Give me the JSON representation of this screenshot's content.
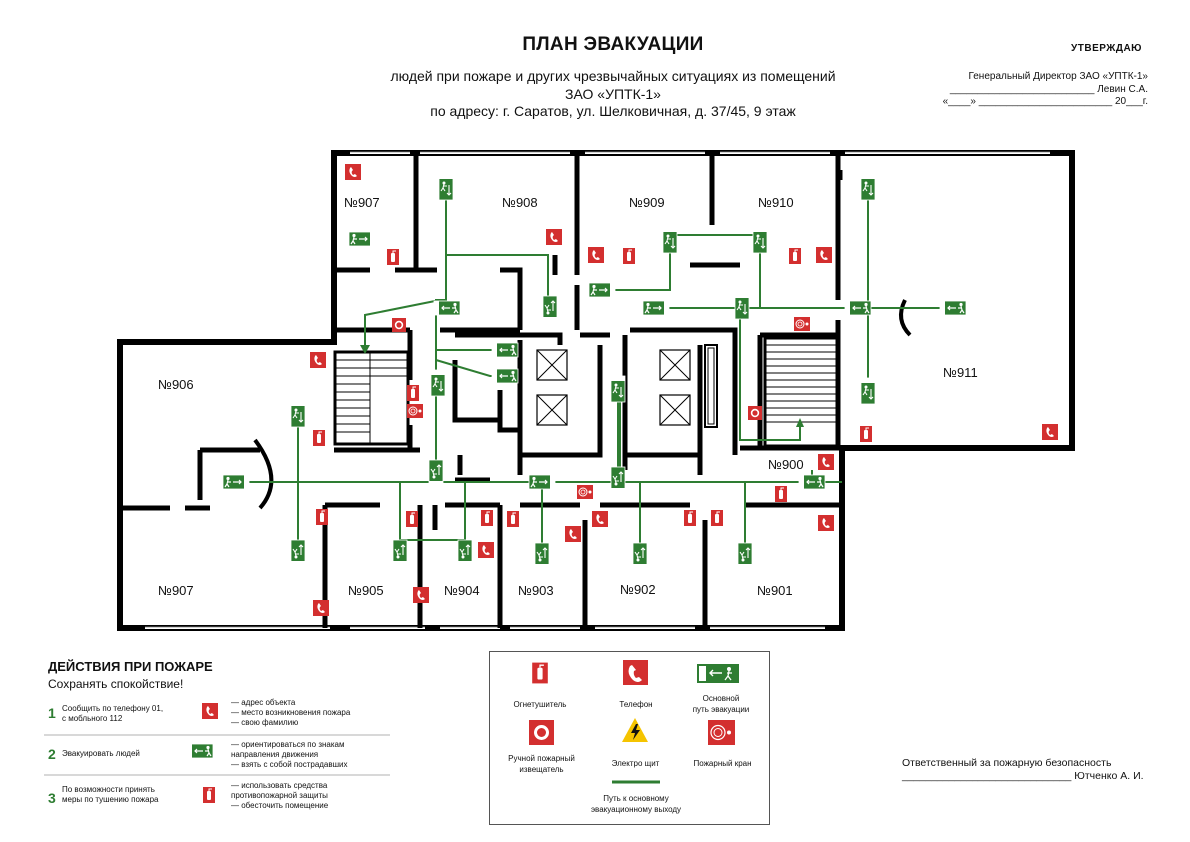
{
  "header": {
    "title": "ПЛАН ЭВАКУАЦИИ",
    "line1": "людей при пожаре и других чрезвычайных ситуациях из помещений",
    "line2": "ЗАО «УПТК-1»",
    "line3": "по адресу: г. Саратов, ул. Шелковичная, д. 37/45, 9 этаж"
  },
  "approval": {
    "heading": "УТВЕРЖДАЮ",
    "position": "Генеральный Директор ЗАО «УПТК-1»",
    "signature": "__________________________ Левин С.А.",
    "date": "«____» ________________________ 20___г."
  },
  "rooms": {
    "r907a": "№907",
    "r908": "№908",
    "r909": "№909",
    "r910": "№910",
    "r911": "№911",
    "r906": "№906",
    "r907b": "№907",
    "r905": "№905",
    "r904": "№904",
    "r903": "№903",
    "r902": "№902",
    "r901": "№901",
    "r900": "№900"
  },
  "actions": {
    "title": "ДЕЙСТВИЯ ПРИ ПОЖАРЕ",
    "subtitle": "Сохранять спокойствие!",
    "steps": [
      {
        "num": "1",
        "text1": "Сообщить по телефону 01,",
        "text2": "с мобльного 112",
        "text3": "",
        "list1": "— адрес объекта",
        "list2": "— место возникновения пожара",
        "list3": "— свою фамилию"
      },
      {
        "num": "2",
        "text1": "Эвакуировать людей",
        "text2": "",
        "text3": "",
        "list1": "— ориентироваться по знакам",
        "list2": "направления движения",
        "list3": "— взять с собой пострадавших"
      },
      {
        "num": "3",
        "text1": "По возможности принять",
        "text2": "меры по тушению пожара",
        "text3": "",
        "list1": "— использовать средства",
        "list2": "противопожарной защиты",
        "list3": "— обесточить помещение"
      }
    ]
  },
  "legend": {
    "extinguisher": "Огнетушитель",
    "phone": "Телефон",
    "route_sign1": "Основной",
    "route_sign2": "путь эвакуации",
    "alarm1": "Ручной пожарный",
    "alarm2": "извещатель",
    "panel": "Электро щит",
    "hydrant": "Пожарный кран",
    "path1": "Путь к основному",
    "path2": "эвакуационному выходу"
  },
  "responsible": {
    "line1": "Ответственный за пожарную безопасность",
    "line2": "_____________________________ Ютченко А. И."
  },
  "colors": {
    "route": "#2e7d32",
    "sign_red": "#d32f2f",
    "walls": "#000000",
    "panel_yellow": "#f5c400"
  }
}
